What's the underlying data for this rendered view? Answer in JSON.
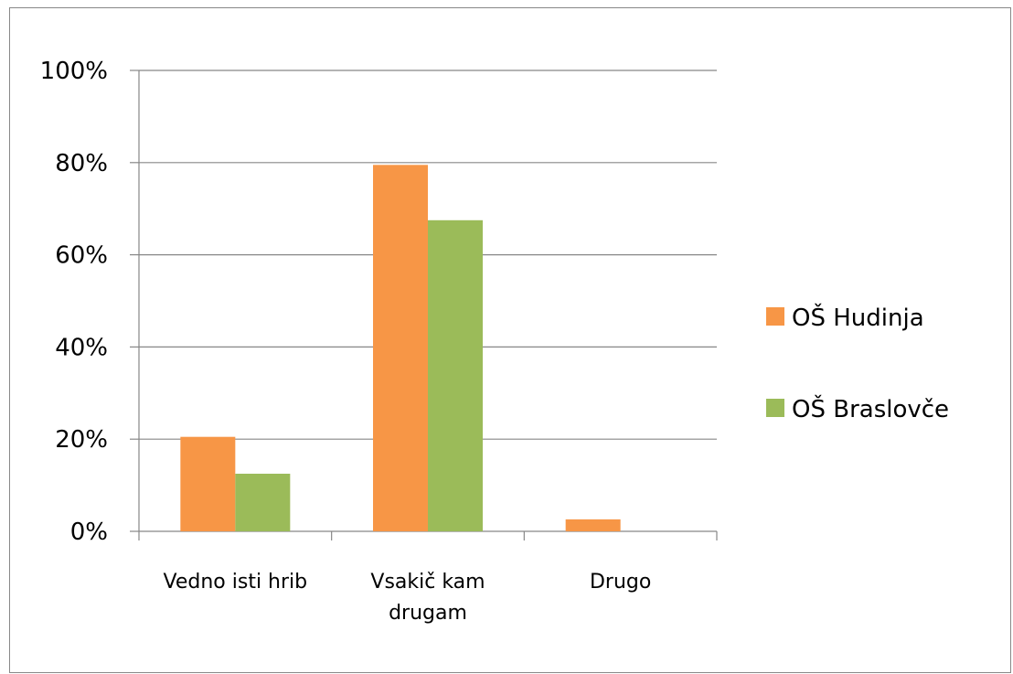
{
  "chart_data": {
    "type": "bar",
    "title": "",
    "xlabel": "",
    "ylabel": "",
    "categories": [
      [
        "Vedno isti hrib"
      ],
      [
        "Vsakič kam",
        "drugam"
      ],
      [
        "Drugo"
      ]
    ],
    "series": [
      {
        "name": "OŠ Hudinja",
        "color": "#F79646",
        "values": [
          20.5,
          79.5,
          2.6
        ]
      },
      {
        "name": "OŠ Braslovče",
        "color": "#9BBB59",
        "values": [
          12.5,
          67.5,
          0
        ]
      }
    ],
    "ylim": [
      0,
      100
    ],
    "yticks": [
      0,
      20,
      40,
      60,
      80,
      100
    ],
    "ytick_labels": [
      "0%",
      "20%",
      "40%",
      "60%",
      "80%",
      "100%"
    ],
    "grid": true,
    "legend_position": "right"
  }
}
